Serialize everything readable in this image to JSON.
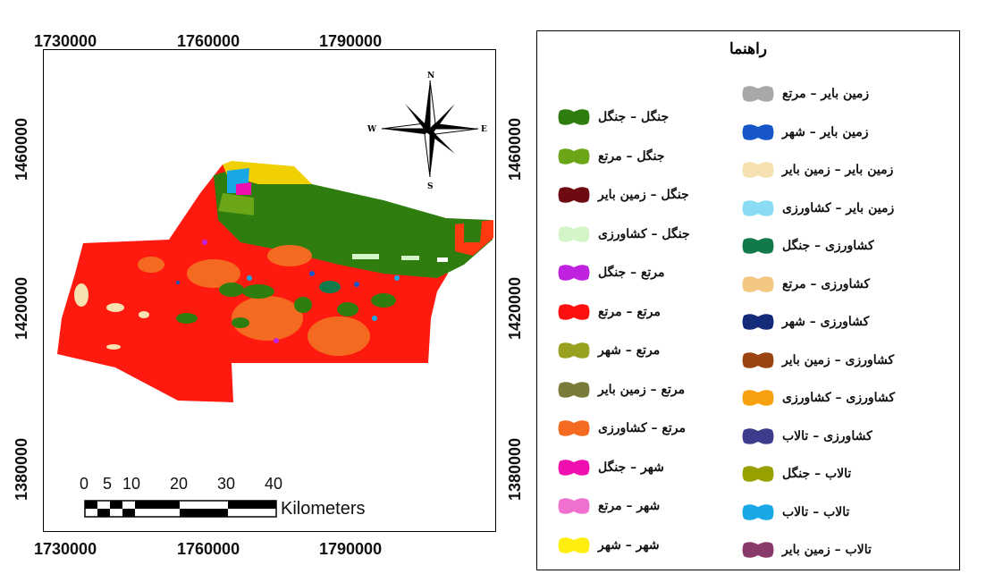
{
  "coords": {
    "top": [
      "1730000",
      "1760000",
      "1790000"
    ],
    "bottom": [
      "1730000",
      "1760000",
      "1790000"
    ],
    "left": [
      "1460000",
      "1420000",
      "1380000"
    ],
    "right": [
      "1460000",
      "1420000",
      "1380000"
    ]
  },
  "north_arrow": {
    "n": "N",
    "s": "S",
    "e": "E",
    "w": "W"
  },
  "scale_bar": {
    "ticks": [
      "0",
      "5",
      "10",
      "20",
      "30",
      "40"
    ],
    "unit": "Kilometers"
  },
  "legend": {
    "title": "راهنما",
    "left_column": [
      {
        "label": "جنگل – جنگل",
        "color": "#2e7d0e"
      },
      {
        "label": "جنگل – مرتع",
        "color": "#6aa618"
      },
      {
        "label": "جنگل – زمین بایر",
        "color": "#6e0a12"
      },
      {
        "label": "جنگل – کشاورزی",
        "color": "#d4f5c8"
      },
      {
        "label": "مرتع – جنگل",
        "color": "#c020e0"
      },
      {
        "label": "مرتع – مرتع",
        "color": "#ff1010"
      },
      {
        "label": "مرتع – شهر",
        "color": "#9aa020"
      },
      {
        "label": "مرتع – زمین بایر",
        "color": "#7a7a3a"
      },
      {
        "label": "مرتع – کشاورزی",
        "color": "#f46a20"
      },
      {
        "label": "شهر – جنگل",
        "color": "#f010b0"
      },
      {
        "label": "شهر – مرتع",
        "color": "#f070d0"
      },
      {
        "label": "شهر – شهر",
        "color": "#ffee10"
      }
    ],
    "right_column": [
      {
        "label": "زمین بایر – مرتع",
        "color": "#a8a8a8"
      },
      {
        "label": "زمین بایر – شهر",
        "color": "#1656c8"
      },
      {
        "label": "زمین بایر – زمین بایر",
        "color": "#f6e2b0"
      },
      {
        "label": "زمین بایر – کشاورزی",
        "color": "#8adcf5"
      },
      {
        "label": "کشاورزی – جنگل",
        "color": "#127a4a"
      },
      {
        "label": "کشاورزی – مرتع",
        "color": "#f2c880"
      },
      {
        "label": "کشاورزی – شهر",
        "color": "#142a7a"
      },
      {
        "label": "کشاورزی – زمین بایر",
        "color": "#9a4412"
      },
      {
        "label": "کشاورزی – کشاورزی",
        "color": "#f8a010"
      },
      {
        "label": "کشاورزی – تالاب",
        "color": "#3c3c8c"
      },
      {
        "label": "تالاب – جنگل",
        "color": "#98a000"
      },
      {
        "label": "تالاب – تالاب",
        "color": "#18a8e8"
      },
      {
        "label": "تالاب – زمین بایر",
        "color": "#8a3a6a"
      }
    ]
  }
}
